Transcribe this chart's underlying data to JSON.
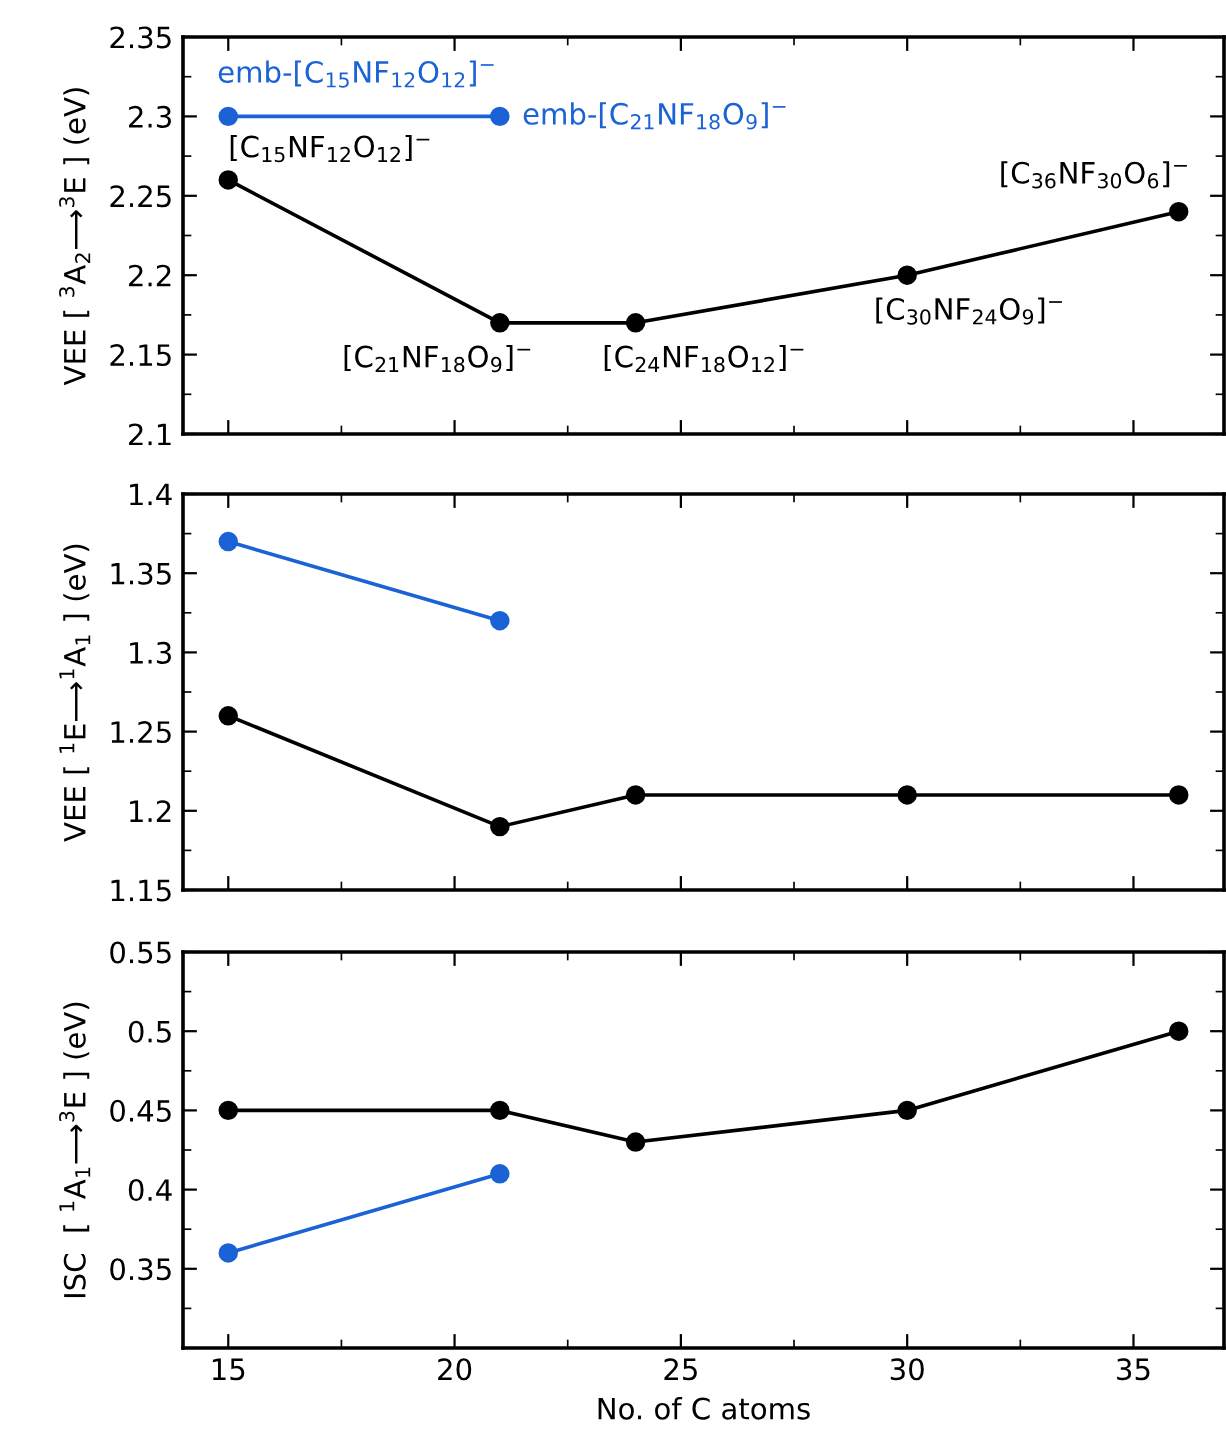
{
  "chart_data": [
    {
      "type": "line",
      "ylabel": "VEE [ $^{3}$A$_{2}$⟶$^{3}$E ] (eV)",
      "series": [
        {
          "color": "#000000",
          "x": [
            15,
            21,
            24,
            30,
            36
          ],
          "values": [
            2.26,
            2.17,
            2.17,
            2.2,
            2.24
          ]
        },
        {
          "color": "#1a62d6",
          "x": [
            15,
            21
          ],
          "values": [
            2.3,
            2.3
          ]
        }
      ],
      "annotations": [
        {
          "text": "emb-[C$_{15}$NF$_{12}$O$_{12}$]$^{−}$",
          "x": 15,
          "y": 2.3
        },
        {
          "text": "emb-[C$_{21}$NF$_{18}$O$_{9}$]$^{−}$",
          "x": 21,
          "y": 2.3
        },
        {
          "text": "[C$_{15}$NF$_{12}$O$_{12}$]$^{−}$",
          "x": 15,
          "y": 2.26
        },
        {
          "text": "[C$_{21}$NF$_{18}$O$_{9}$]$^{−}$",
          "x": 21,
          "y": 2.17
        },
        {
          "text": "[C$_{24}$NF$_{18}$O$_{12}$]$^{−}$",
          "x": 24,
          "y": 2.17
        },
        {
          "text": "[C$_{30}$NF$_{24}$O$_{9}$]$^{−}$",
          "x": 30,
          "y": 2.2
        },
        {
          "text": "[C$_{36}$NF$_{30}$O$_{6}$]$^{−}$",
          "x": 36,
          "y": 2.24
        }
      ],
      "xlim": [
        14,
        37
      ],
      "xticks": [
        15,
        20,
        25,
        30,
        35
      ],
      "ylim": [
        2.1,
        2.35
      ],
      "yticks": [
        2.1,
        2.15,
        2.2,
        2.25,
        2.3,
        2.35
      ],
      "tick_labels": "y",
      "marker": "circle",
      "line_style": "solid",
      "grid": false,
      "legend": false
    },
    {
      "type": "line",
      "ylabel": "VEE [ $^{1}$E⟶$^{1}$A$_{1}$ ] (eV)",
      "series": [
        {
          "color": "#000000",
          "x": [
            15,
            21,
            24,
            30,
            36
          ],
          "values": [
            1.26,
            1.19,
            1.21,
            1.21,
            1.21
          ]
        },
        {
          "color": "#1a62d6",
          "x": [
            15,
            21
          ],
          "values": [
            1.37,
            1.32
          ]
        }
      ],
      "xlim": [
        14,
        37
      ],
      "xticks": [
        15,
        20,
        25,
        30,
        35
      ],
      "ylim": [
        1.15,
        1.4
      ],
      "yticks": [
        1.15,
        1.2,
        1.25,
        1.3,
        1.35,
        1.4
      ],
      "tick_labels": "y",
      "marker": "circle",
      "line_style": "solid",
      "grid": false,
      "legend": false
    },
    {
      "type": "line",
      "xlabel": "No. of C atoms",
      "ylabel": "ISC  [ $^{1}$A$_{1}$⟶$^{3}$E ] (eV)",
      "series": [
        {
          "color": "#000000",
          "x": [
            15,
            21,
            24,
            30,
            36
          ],
          "values": [
            0.45,
            0.45,
            0.43,
            0.45,
            0.5
          ]
        },
        {
          "color": "#1a62d6",
          "x": [
            15,
            21
          ],
          "values": [
            0.36,
            0.41
          ]
        }
      ],
      "xlim": [
        14,
        37
      ],
      "xticks": [
        15,
        20,
        25,
        30,
        35
      ],
      "ylim": [
        0.3,
        0.55
      ],
      "yticks": [
        {
          "value": 0.3,
          "label": null
        },
        0.35,
        0.4,
        0.45,
        0.5,
        0.55
      ],
      "marker": "circle",
      "line_style": "solid",
      "grid": false,
      "legend": false
    }
  ]
}
